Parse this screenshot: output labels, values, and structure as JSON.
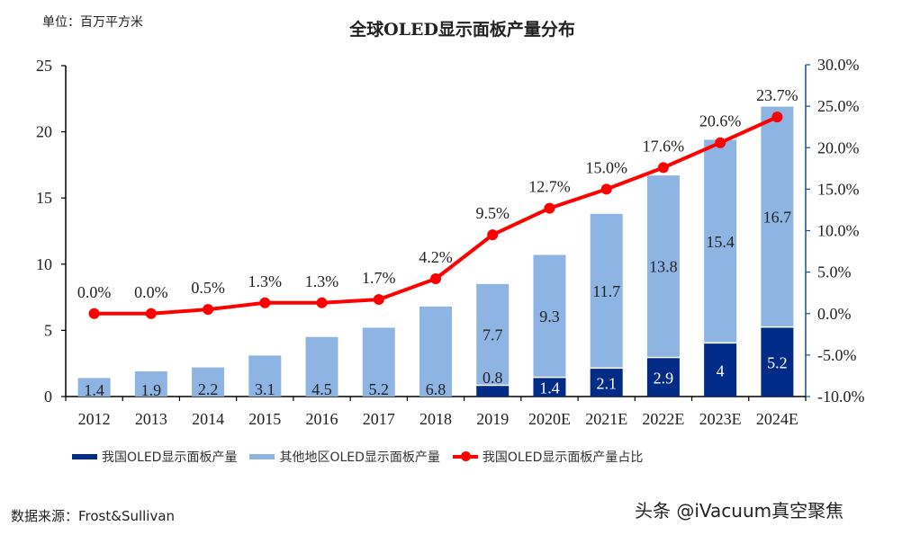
{
  "unit_label": "单位：百万平方米",
  "source_label": "数据来源：Frost&Sullivan",
  "watermark": "头条 @iVacuum真空聚焦",
  "colors": {
    "china_bar": "#002b87",
    "other_bar": "#8eb4e3",
    "share_line": "#ff0000",
    "right_axis": "#1f4e8c",
    "text": "#222222"
  },
  "chart_data": {
    "type": "bar",
    "title": "全球OLED显示面板产量分布",
    "xlabel": "",
    "ylabel": "单位：百万平方米",
    "categories": [
      "2012",
      "2013",
      "2014",
      "2015",
      "2016",
      "2017",
      "2018",
      "2019",
      "2020E",
      "2021E",
      "2022E",
      "2023E",
      "2024E"
    ],
    "stacked": true,
    "series": [
      {
        "name": "我国OLED显示面板产量",
        "type": "bar",
        "axis": "left",
        "values": [
          0,
          0,
          0,
          0,
          0,
          0,
          0,
          0.8,
          1.4,
          2.1,
          2.9,
          4,
          5.2
        ],
        "labels": [
          "",
          "",
          "",
          "",
          "",
          "",
          "",
          "0.8",
          "1.4",
          "2.1",
          "2.9",
          "4",
          "5.2"
        ]
      },
      {
        "name": "其他地区OLED显示面板产量",
        "type": "bar",
        "axis": "left",
        "values": [
          1.4,
          1.9,
          2.2,
          3.1,
          4.5,
          5.2,
          6.8,
          7.7,
          9.3,
          11.7,
          13.8,
          15.4,
          16.7
        ],
        "labels": [
          "1.4",
          "1.9",
          "2.2",
          "3.1",
          "4.5",
          "5.2",
          "6.8",
          "7.7",
          "9.3",
          "11.7",
          "13.8",
          "15.4",
          "16.7"
        ]
      },
      {
        "name": "我国OLED显示面板产量占比",
        "type": "line",
        "axis": "right",
        "values": [
          0.0,
          0.0,
          0.5,
          1.3,
          1.3,
          1.7,
          4.2,
          9.5,
          12.7,
          15.0,
          17.6,
          20.6,
          23.7
        ],
        "labels": [
          "0.0%",
          "0.0%",
          "0.5%",
          "1.3%",
          "1.3%",
          "1.7%",
          "4.2%",
          "9.5%",
          "12.7%",
          "15.0%",
          "17.6%",
          "20.6%",
          "23.7%"
        ]
      }
    ],
    "left_axis": {
      "ylim": [
        0,
        25
      ],
      "ticks": [
        0,
        5,
        10,
        15,
        20,
        25
      ],
      "tick_labels": [
        "0",
        "5",
        "10",
        "15",
        "20",
        "25"
      ]
    },
    "right_axis": {
      "ylim": [
        -10,
        30
      ],
      "ticks": [
        -10,
        -5,
        0,
        5,
        10,
        15,
        20,
        25,
        30
      ],
      "tick_labels": [
        "-10.0%",
        "-5.0%",
        "0.0%",
        "5.0%",
        "10.0%",
        "15.0%",
        "20.0%",
        "25.0%",
        "30.0%"
      ]
    },
    "grid": false,
    "legend": "bottom"
  }
}
